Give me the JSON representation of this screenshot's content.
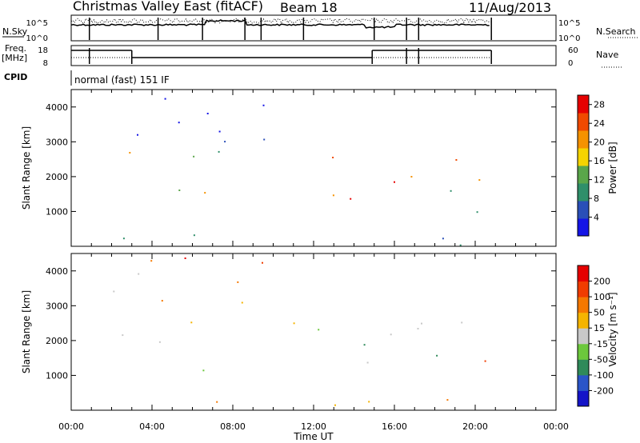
{
  "header": {
    "title": "Christmas Valley East (fitACF)",
    "beam": "Beam 18",
    "date": "11/Aug/2013"
  },
  "left_labels": {
    "nsky": "N.Sky",
    "freq_top": "Freq.",
    "freq_bottom": "[MHz]",
    "cpid": "CPID"
  },
  "right_labels": {
    "nsearch": "N.Search",
    "nave": "Nave"
  },
  "cpid_text": "normal (fast) 151 IF",
  "chart_data": [
    {
      "type": "line",
      "panel": "noise",
      "series": [
        {
          "name": "N.Sky",
          "style": "solid"
        },
        {
          "name": "N.Search",
          "style": "dotted"
        }
      ],
      "yticks": [
        "10^5",
        "10^0"
      ],
      "right_yticks": [
        "10^5",
        "10^0"
      ],
      "xlim": [
        0,
        24
      ]
    },
    {
      "type": "line",
      "panel": "frequency",
      "series": [
        {
          "name": "Freq.",
          "style": "solid",
          "levels_mhz": [
            18,
            8
          ]
        },
        {
          "name": "Nave",
          "style": "dotted"
        }
      ],
      "yticks": [
        18,
        8
      ],
      "right_yticks": [
        60,
        0
      ],
      "segments": [
        {
          "start": 0.0,
          "end": 3.0,
          "freq": 18
        },
        {
          "start": 3.0,
          "end": 14.9,
          "freq": 8
        },
        {
          "start": 14.9,
          "end": 20.8,
          "freq": 18
        }
      ],
      "xlim": [
        0,
        24
      ]
    },
    {
      "type": "heatmap",
      "panel": "power",
      "ylabel": "Slant Range [km]",
      "ylim": [
        0,
        4500
      ],
      "yticks": [
        1000,
        2000,
        3000,
        4000
      ],
      "xlim": [
        0,
        24
      ],
      "colorbar": {
        "label": "Power [dB]",
        "ticks": [
          4,
          8,
          12,
          16,
          20,
          24,
          28
        ],
        "range": [
          0,
          30
        ],
        "colors": [
          "#1414e6",
          "#2a4fb8",
          "#2f8f6a",
          "#5aa64a",
          "#f5d400",
          "#f59200",
          "#f04a00",
          "#e60000"
        ]
      }
    },
    {
      "type": "heatmap",
      "panel": "velocity",
      "ylabel": "Slant Range [km]",
      "ylim": [
        0,
        4500
      ],
      "yticks": [
        1000,
        2000,
        3000,
        4000
      ],
      "xlim": [
        0,
        24
      ],
      "xticks": [
        "00:00",
        "04:00",
        "08:00",
        "12:00",
        "16:00",
        "20:00",
        "00:00"
      ],
      "xlabel": "Time UT",
      "colorbar": {
        "label": "Velocity [m s⁻¹]",
        "ticks": [
          200,
          100,
          50,
          15,
          -15,
          -50,
          -100,
          -200
        ],
        "colors": [
          "#1414c8",
          "#2a55c8",
          "#2f8a5a",
          "#6cc83c",
          "#c8c8c8",
          "#f5b400",
          "#f57800",
          "#f03c00",
          "#e60000"
        ]
      }
    }
  ]
}
